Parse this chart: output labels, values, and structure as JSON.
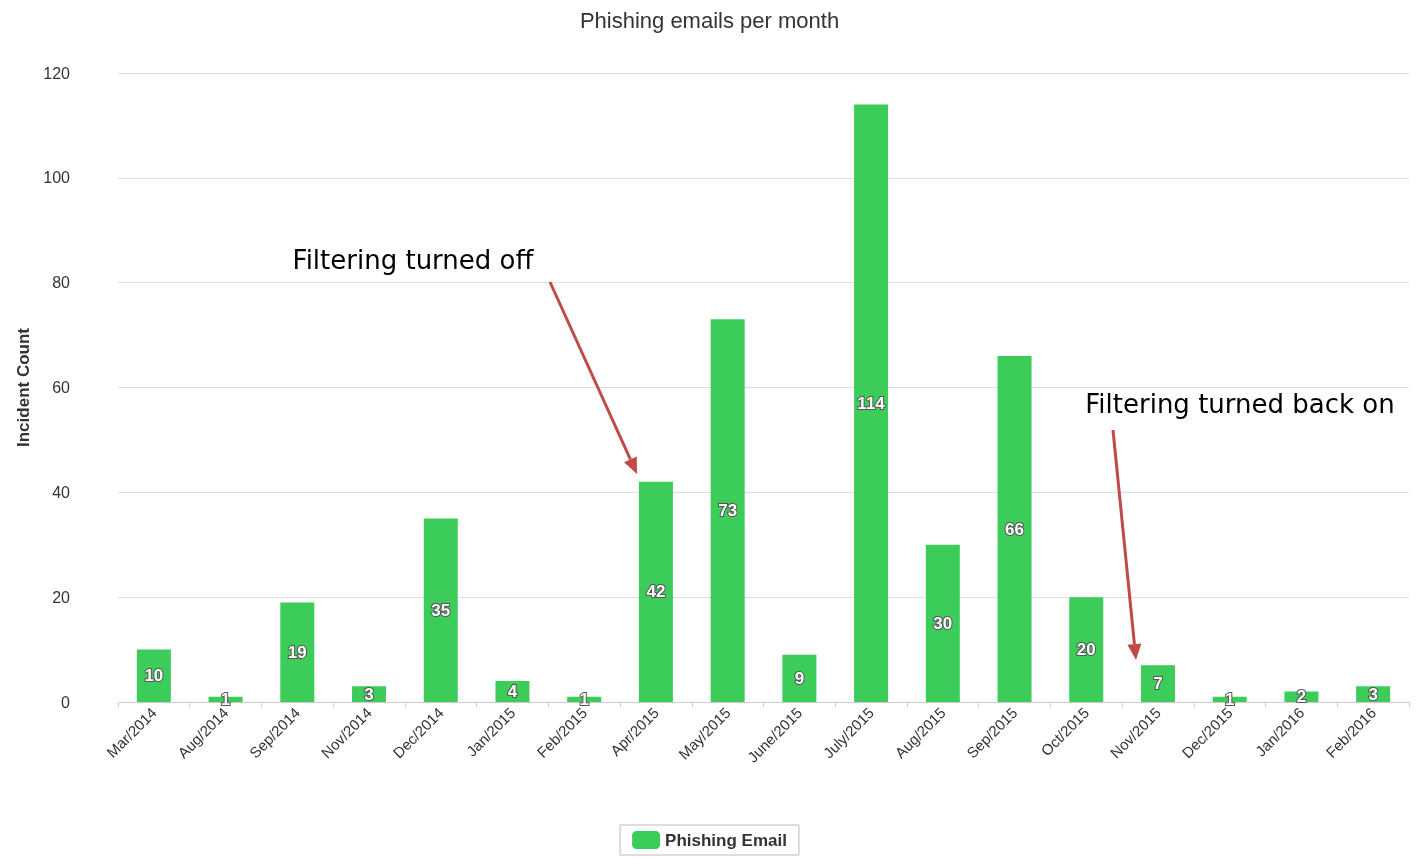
{
  "chart_data": {
    "type": "bar",
    "title": "Phishing emails per month",
    "ylabel": "Incident Count",
    "categories": [
      "Mar/2014",
      "Aug/2014",
      "Sep/2014",
      "Nov/2014",
      "Dec/2014",
      "Jan/2015",
      "Feb/2015",
      "Apr/2015",
      "May/2015",
      "June/2015",
      "July/2015",
      "Aug/2015",
      "Sep/2015",
      "Oct/2015",
      "Nov/2015",
      "Dec/2015",
      "Jan/2016",
      "Feb/2016"
    ],
    "series": [
      {
        "name": "Phishing Email",
        "color": "#3ccc5a",
        "values": [
          10,
          1,
          19,
          3,
          35,
          4,
          1,
          42,
          73,
          9,
          114,
          30,
          66,
          20,
          7,
          1,
          2,
          3
        ]
      }
    ],
    "ylim": [
      0,
      120
    ],
    "yticks": [
      0,
      20,
      40,
      60,
      80,
      100,
      120
    ],
    "grid": "y",
    "legend": "bottom",
    "data_labels": true,
    "annotations": [
      "Filtering turned off",
      "Filtering turned back on"
    ]
  }
}
